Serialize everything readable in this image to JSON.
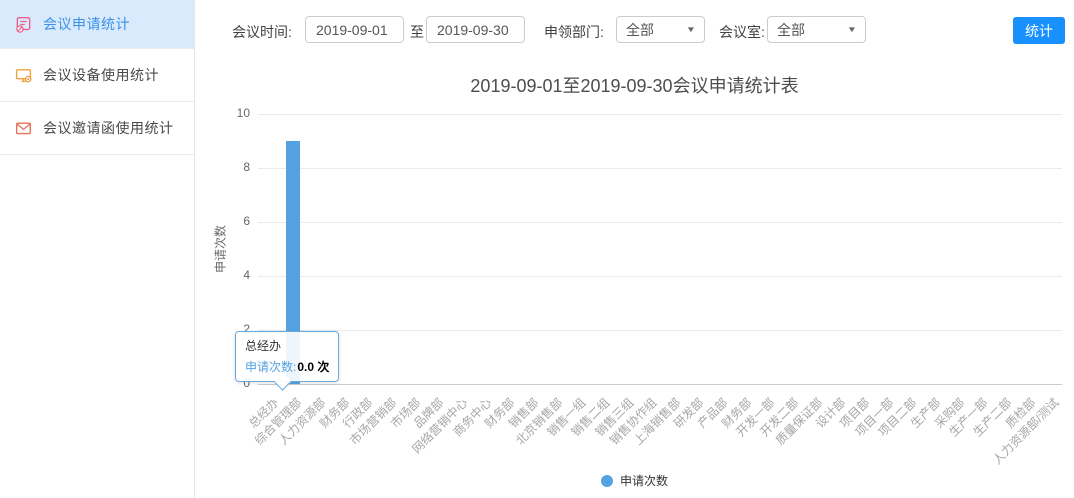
{
  "sidebar": {
    "items": [
      {
        "label": "会议申请统计",
        "icon": "clipboard-stats-icon",
        "active": true
      },
      {
        "label": "会议设备使用统计",
        "icon": "device-monitor-icon",
        "active": false
      },
      {
        "label": "会议邀请函使用统计",
        "icon": "invitation-envelope-icon",
        "active": false
      }
    ]
  },
  "toolbar": {
    "meeting_time_label": "会议时间:",
    "date_from": "2019-09-01",
    "to_label": "至",
    "date_to": "2019-09-30",
    "department_label": "申领部门:",
    "department_value": "全部",
    "room_label": "会议室:",
    "room_value": "全部",
    "submit_label": "统计"
  },
  "colors": {
    "primary_button": "#1890ff",
    "series_blue": "#55a2e2",
    "tooltip_border": "#69aade",
    "sidebar_active_bg": "#d8eafb",
    "sidebar_active_text": "#3a91e8"
  },
  "chart_data": {
    "type": "bar",
    "title": "2019-09-01至2019-09-30会议申请统计表",
    "xlabel": "",
    "ylabel": "申请次数",
    "ylim": [
      0,
      10
    ],
    "yticks": [
      0,
      2,
      4,
      6,
      8,
      10
    ],
    "grid": true,
    "legend_position": "bottom",
    "categories": [
      "总经办",
      "综合管理部",
      "人力资源部",
      "财务部",
      "行政部",
      "市场营销部",
      "市场部",
      "品牌部",
      "网络营销中心",
      "商务中心",
      "财务部",
      "销售部",
      "北京销售部",
      "销售一组",
      "销售二组",
      "销售三组",
      "销售协作组",
      "上海销售部",
      "研发部",
      "产品部",
      "财务部",
      "开发一部",
      "开发二部",
      "质量保证部",
      "设计部",
      "项目部",
      "项目一部",
      "项目二部",
      "生产部",
      "采购部",
      "生产一部",
      "生产二部",
      "质检部",
      "人力资源部/测试"
    ],
    "series": [
      {
        "name": "申请次数",
        "color": "#55a2e2",
        "values": [
          0,
          9,
          0,
          0,
          0,
          0,
          0,
          0,
          0,
          0,
          0,
          0,
          0,
          0,
          0,
          0,
          0,
          0,
          0,
          0,
          0,
          0,
          0,
          0,
          0,
          0,
          0,
          0,
          0,
          0,
          0,
          0,
          0,
          0
        ]
      }
    ],
    "tooltip": {
      "category": "总经办",
      "series_label": "申请次数:",
      "value": 0.0,
      "value_text": "0.0 次",
      "border_color": "#69aade"
    }
  }
}
